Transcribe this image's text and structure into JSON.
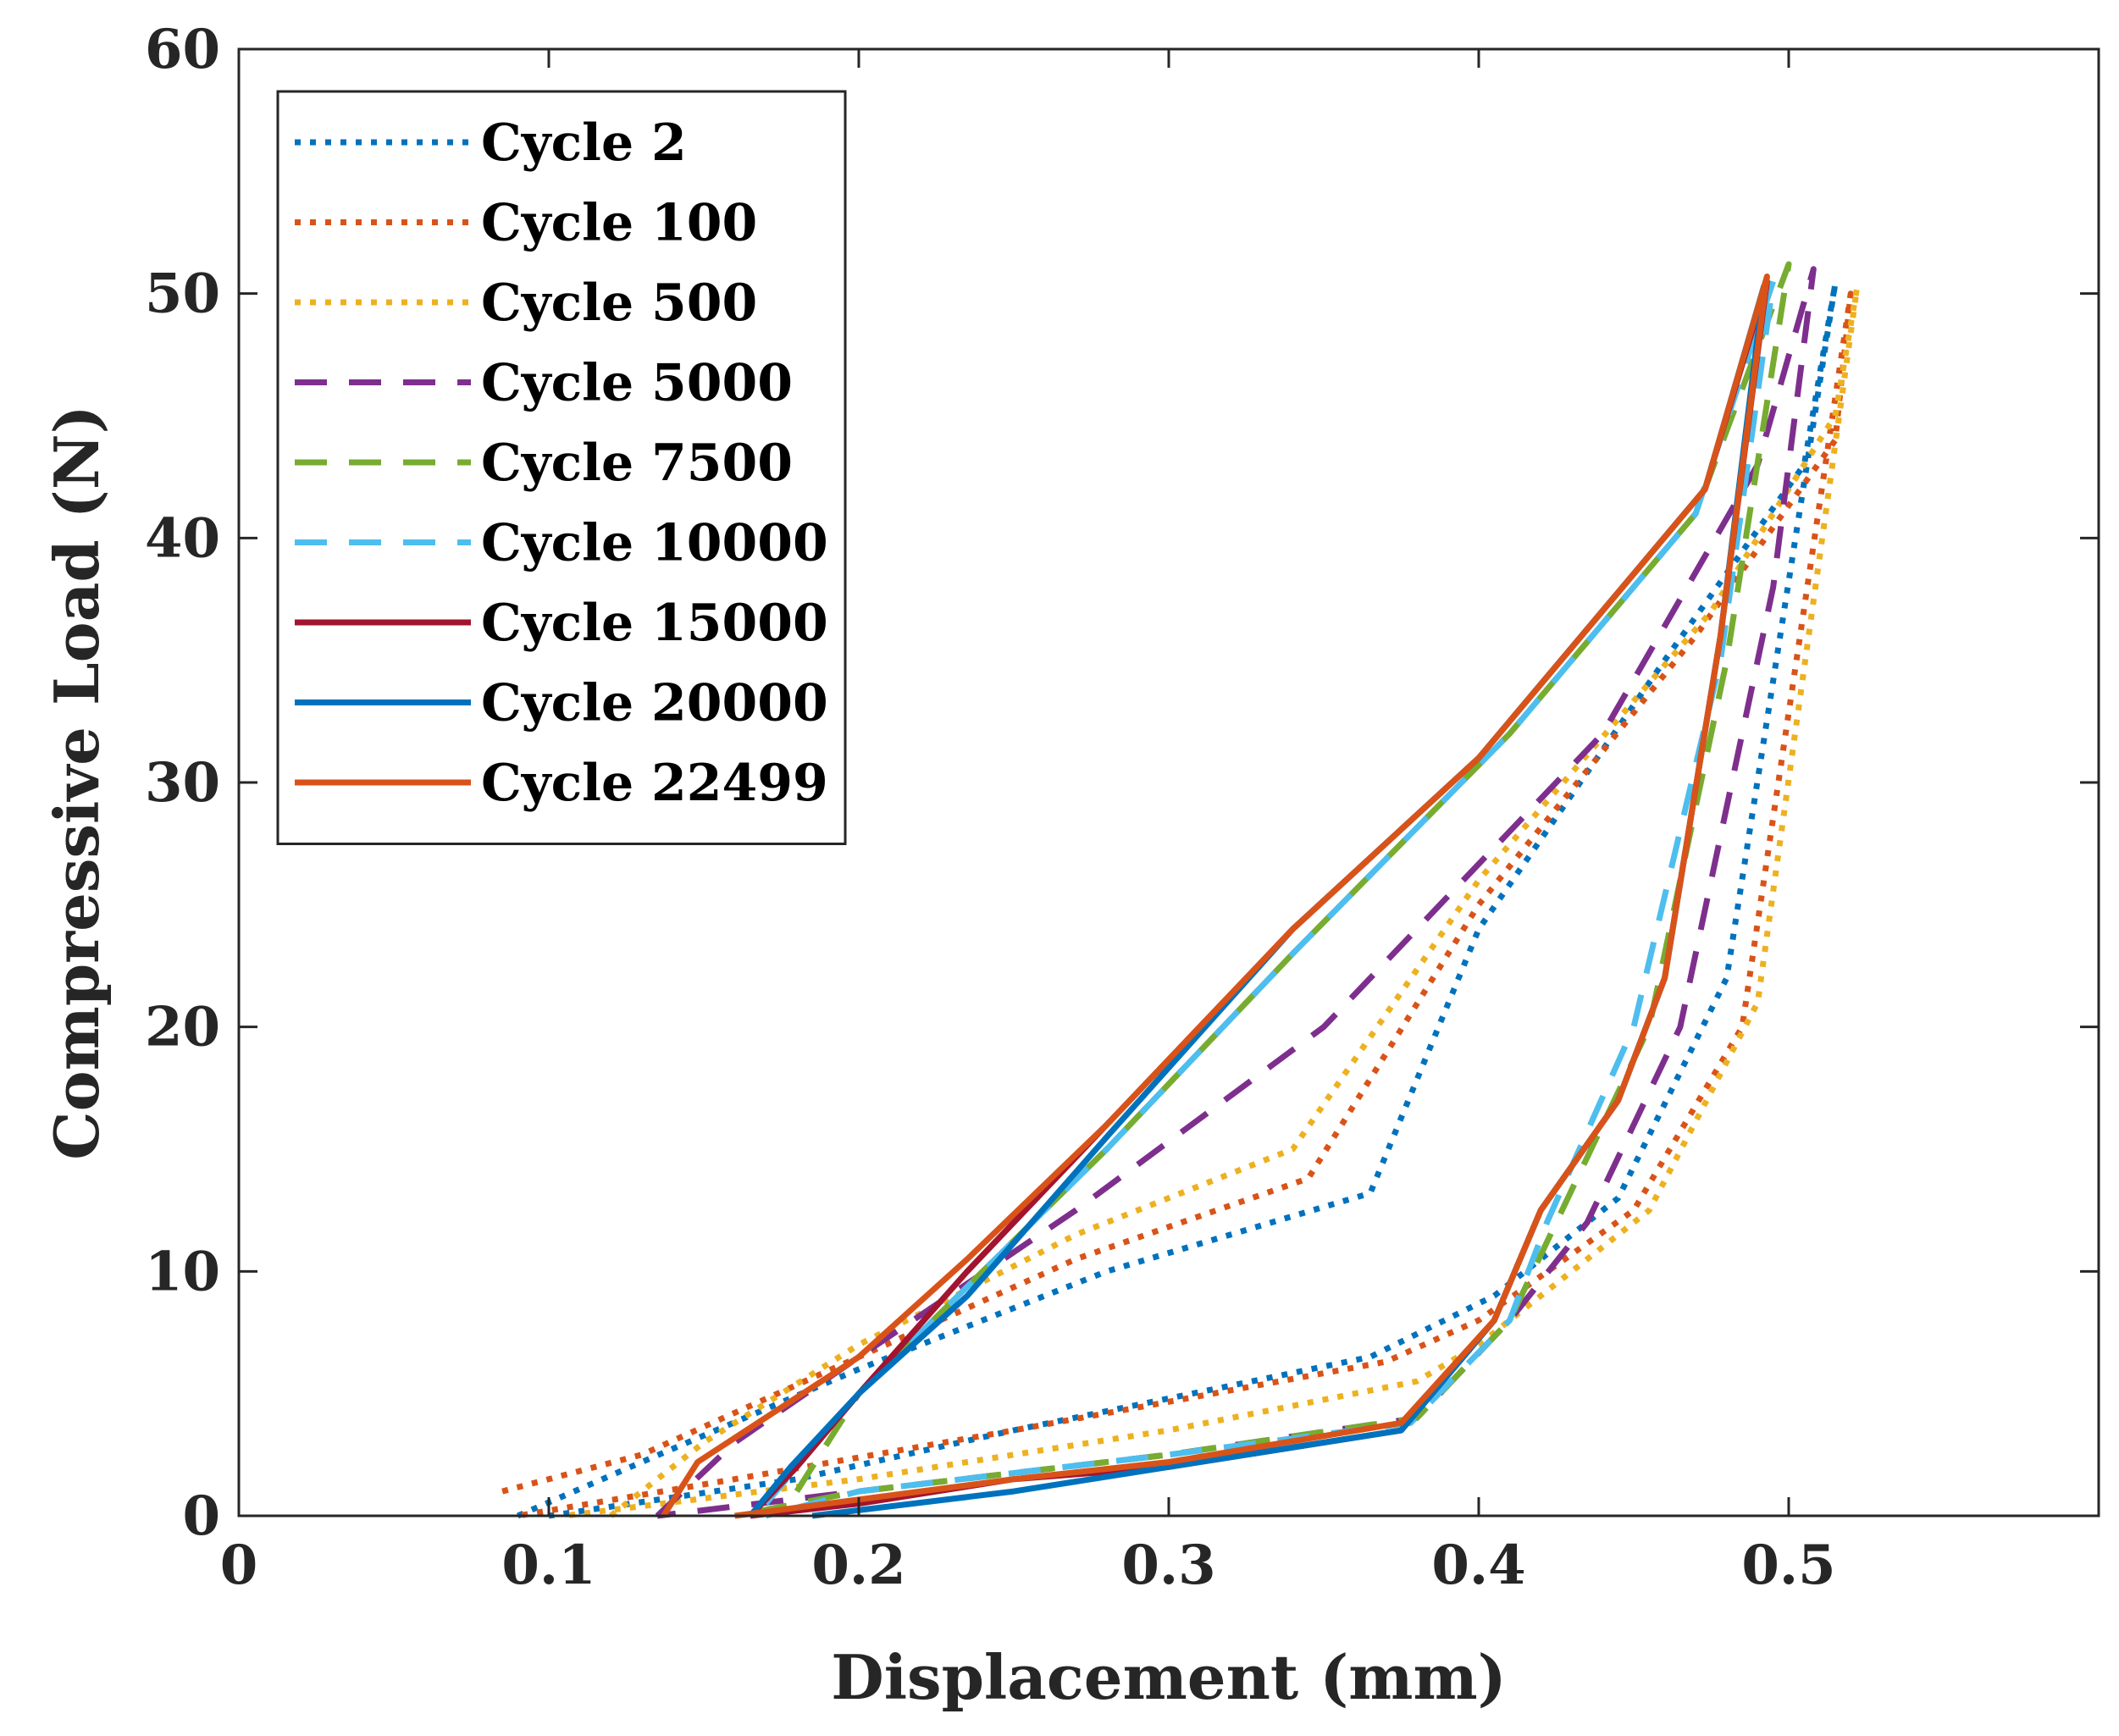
{
  "chart_data": {
    "type": "line",
    "title": "",
    "xlabel": "Displacement (mm)",
    "ylabel": "Compressive Load (N)",
    "xlim": [
      0,
      0.6
    ],
    "ylim": [
      0,
      60
    ],
    "xticks": [
      0,
      0.1,
      0.2,
      0.3,
      0.4,
      0.5
    ],
    "xtick_labels": [
      "0",
      "0.1",
      "0.2",
      "0.3",
      "0.4",
      "0.5"
    ],
    "yticks": [
      0,
      10,
      20,
      30,
      40,
      50,
      60
    ],
    "ytick_labels": [
      "0",
      "10",
      "20",
      "30",
      "40",
      "50",
      "60"
    ],
    "grid": false,
    "legend_position": "top-left",
    "series": [
      {
        "name": "Cycle 2",
        "color": "#0072BD",
        "style": "dotted",
        "x": [
          0.09,
          0.13,
          0.2,
          0.28,
          0.365,
          0.4,
          0.46,
          0.505,
          0.515,
          0.48,
          0.445,
          0.405,
          0.365,
          0.25,
          0.18,
          0.1
        ],
        "y": [
          0,
          2.2,
          6.0,
          10.0,
          13.2,
          24.0,
          35.0,
          43.0,
          50.4,
          22.0,
          13.0,
          9.0,
          6.5,
          3.5,
          1.5,
          0
        ]
      },
      {
        "name": "Cycle 100",
        "color": "#D95319",
        "style": "dotted",
        "x": [
          0.085,
          0.13,
          0.2,
          0.27,
          0.345,
          0.4,
          0.47,
          0.515,
          0.52,
          0.485,
          0.45,
          0.4,
          0.37,
          0.25,
          0.16,
          0.09
        ],
        "y": [
          1.0,
          2.5,
          6.5,
          10.5,
          13.8,
          25.0,
          36.0,
          44.0,
          50.0,
          20.0,
          12.5,
          8.0,
          6.3,
          3.5,
          1.5,
          0
        ]
      },
      {
        "name": "Cycle 500",
        "color": "#EDB120",
        "style": "dotted",
        "x": [
          0.12,
          0.15,
          0.2,
          0.27,
          0.34,
          0.4,
          0.475,
          0.515,
          0.522,
          0.49,
          0.455,
          0.4,
          0.38,
          0.3,
          0.2,
          0.105
        ],
        "y": [
          0,
          3.0,
          7.0,
          11.5,
          15.0,
          26.0,
          37.0,
          45.0,
          50.2,
          21.0,
          12.5,
          7.0,
          5.5,
          3.5,
          1.5,
          0
        ]
      },
      {
        "name": "Cycle 5000",
        "color": "#7E2F8E",
        "style": "dashed",
        "x": [
          0.135,
          0.16,
          0.2,
          0.27,
          0.35,
          0.44,
          0.49,
          0.508,
          0.495,
          0.465,
          0.435,
          0.41,
          0.38,
          0.3,
          0.2,
          0.135
        ],
        "y": [
          0,
          3.0,
          6.5,
          12.5,
          20.0,
          32.0,
          43.0,
          51.0,
          38.0,
          20.0,
          12.0,
          8.0,
          4.0,
          2.5,
          1.0,
          0
        ]
      },
      {
        "name": "Cycle 7500",
        "color": "#77AC30",
        "style": "dashed",
        "x": [
          0.18,
          0.2,
          0.24,
          0.28,
          0.34,
          0.41,
          0.47,
          0.5,
          0.48,
          0.455,
          0.425,
          0.41,
          0.38,
          0.3,
          0.2,
          0.16
        ],
        "y": [
          1.0,
          5.0,
          10.0,
          15.0,
          23.0,
          32.0,
          41.0,
          51.2,
          35.0,
          20.0,
          12.0,
          8.0,
          4.0,
          2.5,
          1.0,
          0
        ]
      },
      {
        "name": "Cycle 10000",
        "color": "#4DBEEE",
        "style": "dashed",
        "x": [
          0.17,
          0.2,
          0.24,
          0.28,
          0.34,
          0.41,
          0.47,
          0.495,
          0.478,
          0.45,
          0.422,
          0.41,
          0.378,
          0.3,
          0.2,
          0.17
        ],
        "y": [
          0.5,
          5.0,
          10.0,
          15.0,
          23.0,
          32.0,
          41.0,
          50.5,
          35.0,
          20.0,
          12.0,
          8.0,
          3.8,
          2.5,
          1.0,
          0
        ]
      },
      {
        "name": "Cycle 15000",
        "color": "#A2142F",
        "style": "solid",
        "x": [
          0.165,
          0.18,
          0.2,
          0.235,
          0.28,
          0.34,
          0.4,
          0.473,
          0.493,
          0.478,
          0.46,
          0.445,
          0.42,
          0.405,
          0.375,
          0.3,
          0.25,
          0.2,
          0.165
        ],
        "y": [
          0,
          2.0,
          5.0,
          10.0,
          16.0,
          24.0,
          31.0,
          42.0,
          50.5,
          36.0,
          22.0,
          17.0,
          12.5,
          8.0,
          3.5,
          2.0,
          1.5,
          0.5,
          0
        ]
      },
      {
        "name": "Cycle 20000",
        "color": "#0072BD",
        "style": "solid",
        "x": [
          0.165,
          0.178,
          0.2,
          0.235,
          0.28,
          0.34,
          0.4,
          0.473,
          0.492,
          0.478,
          0.46,
          0.445,
          0.42,
          0.405,
          0.375,
          0.3,
          0.25,
          0.185
        ],
        "y": [
          0,
          2.0,
          5.0,
          9.0,
          15.5,
          24.0,
          31.0,
          42.0,
          50.3,
          36.0,
          22.0,
          17.0,
          12.5,
          8.0,
          3.5,
          2.0,
          1.0,
          0
        ]
      },
      {
        "name": "Cycle 22499",
        "color": "#D95319",
        "style": "solid",
        "x": [
          0.137,
          0.148,
          0.2,
          0.235,
          0.28,
          0.34,
          0.4,
          0.473,
          0.493,
          0.478,
          0.46,
          0.445,
          0.42,
          0.405,
          0.375,
          0.3,
          0.25,
          0.16
        ],
        "y": [
          0,
          2.2,
          6.5,
          10.5,
          16.0,
          24.0,
          31.0,
          42.0,
          50.7,
          36.0,
          22.0,
          17.0,
          12.5,
          8.0,
          3.8,
          2.2,
          1.5,
          0
        ]
      }
    ]
  }
}
